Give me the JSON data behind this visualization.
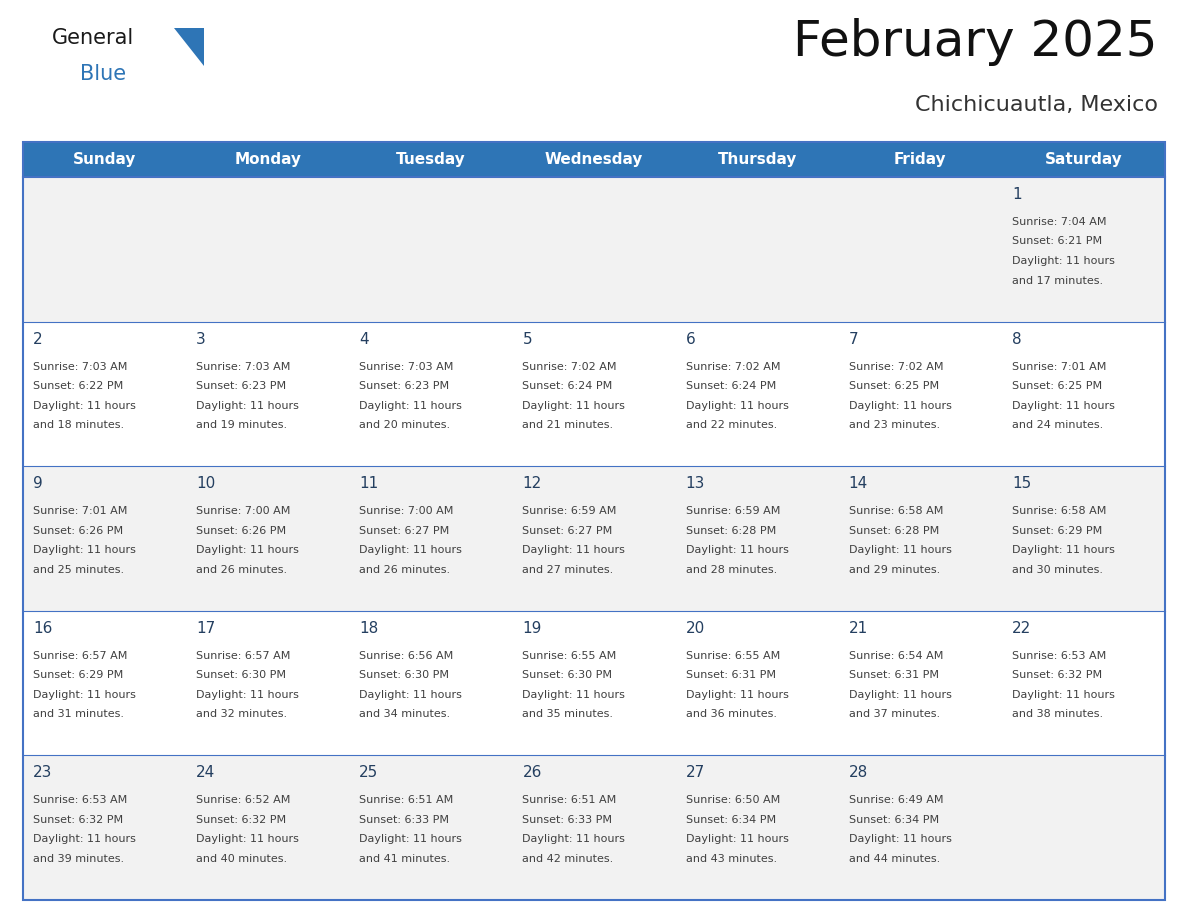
{
  "title": "February 2025",
  "subtitle": "Chichicuautla, Mexico",
  "header_bg": "#2E75B6",
  "header_text_color": "#FFFFFF",
  "cell_bg_white": "#FFFFFF",
  "cell_bg_gray": "#F2F2F2",
  "day_names": [
    "Sunday",
    "Monday",
    "Tuesday",
    "Wednesday",
    "Thursday",
    "Friday",
    "Saturday"
  ],
  "border_color": "#4472C4",
  "divider_color": "#4472C4",
  "text_color": "#404040",
  "day_num_color": "#243F60",
  "days": [
    {
      "day": 1,
      "col": 6,
      "row": 0,
      "sunrise": "7:04 AM",
      "sunset": "6:21 PM",
      "daylight_h": "11 hours",
      "daylight_m": "and 17 minutes."
    },
    {
      "day": 2,
      "col": 0,
      "row": 1,
      "sunrise": "7:03 AM",
      "sunset": "6:22 PM",
      "daylight_h": "11 hours",
      "daylight_m": "and 18 minutes."
    },
    {
      "day": 3,
      "col": 1,
      "row": 1,
      "sunrise": "7:03 AM",
      "sunset": "6:23 PM",
      "daylight_h": "11 hours",
      "daylight_m": "and 19 minutes."
    },
    {
      "day": 4,
      "col": 2,
      "row": 1,
      "sunrise": "7:03 AM",
      "sunset": "6:23 PM",
      "daylight_h": "11 hours",
      "daylight_m": "and 20 minutes."
    },
    {
      "day": 5,
      "col": 3,
      "row": 1,
      "sunrise": "7:02 AM",
      "sunset": "6:24 PM",
      "daylight_h": "11 hours",
      "daylight_m": "and 21 minutes."
    },
    {
      "day": 6,
      "col": 4,
      "row": 1,
      "sunrise": "7:02 AM",
      "sunset": "6:24 PM",
      "daylight_h": "11 hours",
      "daylight_m": "and 22 minutes."
    },
    {
      "day": 7,
      "col": 5,
      "row": 1,
      "sunrise": "7:02 AM",
      "sunset": "6:25 PM",
      "daylight_h": "11 hours",
      "daylight_m": "and 23 minutes."
    },
    {
      "day": 8,
      "col": 6,
      "row": 1,
      "sunrise": "7:01 AM",
      "sunset": "6:25 PM",
      "daylight_h": "11 hours",
      "daylight_m": "and 24 minutes."
    },
    {
      "day": 9,
      "col": 0,
      "row": 2,
      "sunrise": "7:01 AM",
      "sunset": "6:26 PM",
      "daylight_h": "11 hours",
      "daylight_m": "and 25 minutes."
    },
    {
      "day": 10,
      "col": 1,
      "row": 2,
      "sunrise": "7:00 AM",
      "sunset": "6:26 PM",
      "daylight_h": "11 hours",
      "daylight_m": "and 26 minutes."
    },
    {
      "day": 11,
      "col": 2,
      "row": 2,
      "sunrise": "7:00 AM",
      "sunset": "6:27 PM",
      "daylight_h": "11 hours",
      "daylight_m": "and 26 minutes."
    },
    {
      "day": 12,
      "col": 3,
      "row": 2,
      "sunrise": "6:59 AM",
      "sunset": "6:27 PM",
      "daylight_h": "11 hours",
      "daylight_m": "and 27 minutes."
    },
    {
      "day": 13,
      "col": 4,
      "row": 2,
      "sunrise": "6:59 AM",
      "sunset": "6:28 PM",
      "daylight_h": "11 hours",
      "daylight_m": "and 28 minutes."
    },
    {
      "day": 14,
      "col": 5,
      "row": 2,
      "sunrise": "6:58 AM",
      "sunset": "6:28 PM",
      "daylight_h": "11 hours",
      "daylight_m": "and 29 minutes."
    },
    {
      "day": 15,
      "col": 6,
      "row": 2,
      "sunrise": "6:58 AM",
      "sunset": "6:29 PM",
      "daylight_h": "11 hours",
      "daylight_m": "and 30 minutes."
    },
    {
      "day": 16,
      "col": 0,
      "row": 3,
      "sunrise": "6:57 AM",
      "sunset": "6:29 PM",
      "daylight_h": "11 hours",
      "daylight_m": "and 31 minutes."
    },
    {
      "day": 17,
      "col": 1,
      "row": 3,
      "sunrise": "6:57 AM",
      "sunset": "6:30 PM",
      "daylight_h": "11 hours",
      "daylight_m": "and 32 minutes."
    },
    {
      "day": 18,
      "col": 2,
      "row": 3,
      "sunrise": "6:56 AM",
      "sunset": "6:30 PM",
      "daylight_h": "11 hours",
      "daylight_m": "and 34 minutes."
    },
    {
      "day": 19,
      "col": 3,
      "row": 3,
      "sunrise": "6:55 AM",
      "sunset": "6:30 PM",
      "daylight_h": "11 hours",
      "daylight_m": "and 35 minutes."
    },
    {
      "day": 20,
      "col": 4,
      "row": 3,
      "sunrise": "6:55 AM",
      "sunset": "6:31 PM",
      "daylight_h": "11 hours",
      "daylight_m": "and 36 minutes."
    },
    {
      "day": 21,
      "col": 5,
      "row": 3,
      "sunrise": "6:54 AM",
      "sunset": "6:31 PM",
      "daylight_h": "11 hours",
      "daylight_m": "and 37 minutes."
    },
    {
      "day": 22,
      "col": 6,
      "row": 3,
      "sunrise": "6:53 AM",
      "sunset": "6:32 PM",
      "daylight_h": "11 hours",
      "daylight_m": "and 38 minutes."
    },
    {
      "day": 23,
      "col": 0,
      "row": 4,
      "sunrise": "6:53 AM",
      "sunset": "6:32 PM",
      "daylight_h": "11 hours",
      "daylight_m": "and 39 minutes."
    },
    {
      "day": 24,
      "col": 1,
      "row": 4,
      "sunrise": "6:52 AM",
      "sunset": "6:32 PM",
      "daylight_h": "11 hours",
      "daylight_m": "and 40 minutes."
    },
    {
      "day": 25,
      "col": 2,
      "row": 4,
      "sunrise": "6:51 AM",
      "sunset": "6:33 PM",
      "daylight_h": "11 hours",
      "daylight_m": "and 41 minutes."
    },
    {
      "day": 26,
      "col": 3,
      "row": 4,
      "sunrise": "6:51 AM",
      "sunset": "6:33 PM",
      "daylight_h": "11 hours",
      "daylight_m": "and 42 minutes."
    },
    {
      "day": 27,
      "col": 4,
      "row": 4,
      "sunrise": "6:50 AM",
      "sunset": "6:34 PM",
      "daylight_h": "11 hours",
      "daylight_m": "and 43 minutes."
    },
    {
      "day": 28,
      "col": 5,
      "row": 4,
      "sunrise": "6:49 AM",
      "sunset": "6:34 PM",
      "daylight_h": "11 hours",
      "daylight_m": "and 44 minutes."
    }
  ],
  "num_rows": 5,
  "logo_general_color": "#1a1a1a",
  "logo_blue_color": "#2E75B6",
  "logo_triangle_color": "#2E75B6",
  "title_fontsize": 36,
  "subtitle_fontsize": 16,
  "header_fontsize": 11,
  "daynum_fontsize": 11,
  "cell_text_fontsize": 8
}
